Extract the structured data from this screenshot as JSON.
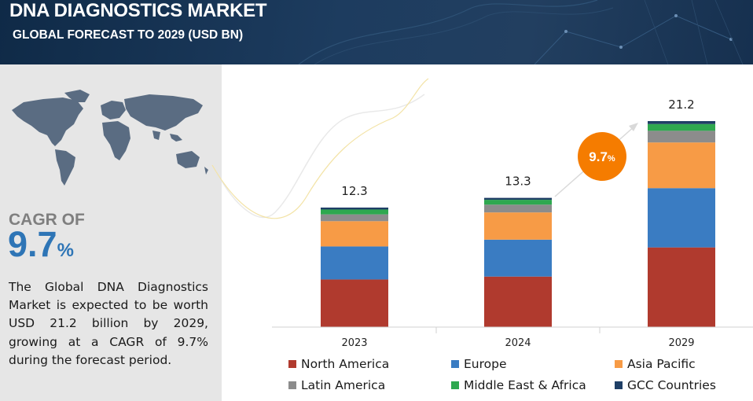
{
  "header": {
    "title": "DNA DIAGNOSTICS MARKET",
    "subtitle": "GLOBAL FORECAST TO 2029 (USD BN)"
  },
  "summary": {
    "cagr_label": "CAGR OF",
    "cagr_value": "9.7",
    "cagr_unit": "%",
    "description": "The Global DNA Diagnostics Market is expected to be worth USD 21.2 billion by 2029, growing at a CAGR of 9.7% during the forecast period."
  },
  "growth_badge": {
    "value": "9.7",
    "unit": "%",
    "color": "#f57c00"
  },
  "chart_data": {
    "type": "bar",
    "stacked": true,
    "categories": [
      "2023",
      "2024",
      "2029"
    ],
    "totals": [
      "12.3",
      "13.3",
      "21.2"
    ],
    "series": [
      {
        "name": "North America",
        "color": "#b03a2e",
        "values": [
          4.9,
          5.2,
          8.2
        ]
      },
      {
        "name": "Europe",
        "color": "#3a7cc2",
        "values": [
          3.4,
          3.8,
          6.1
        ]
      },
      {
        "name": "Asia Pacific",
        "color": "#f79b46",
        "values": [
          2.6,
          2.8,
          4.7
        ]
      },
      {
        "name": "Latin America",
        "color": "#8c8c8c",
        "values": [
          0.7,
          0.8,
          1.2
        ]
      },
      {
        "name": "Middle East & Africa",
        "color": "#2ea84f",
        "values": [
          0.5,
          0.5,
          0.7
        ]
      },
      {
        "name": "GCC Countries",
        "color": "#1f3f66",
        "values": [
          0.2,
          0.2,
          0.3
        ]
      }
    ],
    "ylim": [
      0,
      21.2
    ],
    "grid": false,
    "legend_position": "bottom"
  }
}
